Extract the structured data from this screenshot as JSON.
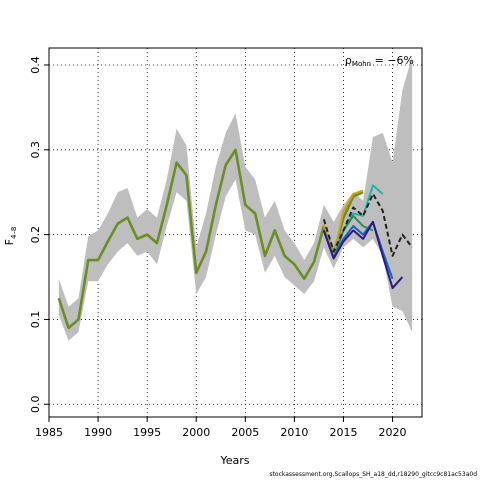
{
  "chart_data": {
    "type": "line",
    "xlabel": "Years",
    "ylabel_main": "F",
    "ylabel_sub": "4–8",
    "rho_symbol": "ρ",
    "rho_sub": "Mohn",
    "rho_value": " = −6%",
    "xlim": [
      1985,
      2023
    ],
    "ylim": [
      -0.015,
      0.42
    ],
    "x_ticks": [
      1985,
      1990,
      1995,
      2000,
      2005,
      2010,
      2015,
      2020
    ],
    "x_tick_labels": [
      "1985",
      "1990",
      "1995",
      "2000",
      "2005",
      "2010",
      "2015",
      "2020"
    ],
    "y_ticks": [
      0.0,
      0.1,
      0.2,
      0.3,
      0.4
    ],
    "y_tick_labels": [
      "0.0",
      "0.1",
      "0.2",
      "0.3",
      "0.4"
    ],
    "grid": true,
    "band": {
      "x": [
        1986,
        1987,
        1988,
        1989,
        1990,
        1991,
        1992,
        1993,
        1994,
        1995,
        1996,
        1997,
        1998,
        1999,
        2000,
        2001,
        2002,
        2003,
        2004,
        2005,
        2006,
        2007,
        2008,
        2009,
        2010,
        2011,
        2012,
        2013,
        2014,
        2015,
        2016,
        2017,
        2018,
        2019,
        2020,
        2021,
        2022
      ],
      "upper": [
        0.148,
        0.115,
        0.125,
        0.198,
        0.205,
        0.225,
        0.25,
        0.255,
        0.22,
        0.23,
        0.22,
        0.265,
        0.325,
        0.305,
        0.185,
        0.225,
        0.28,
        0.32,
        0.343,
        0.28,
        0.265,
        0.22,
        0.24,
        0.205,
        0.19,
        0.17,
        0.19,
        0.235,
        0.215,
        0.235,
        0.25,
        0.24,
        0.315,
        0.32,
        0.285,
        0.37,
        0.41
      ],
      "lower": [
        0.105,
        0.075,
        0.085,
        0.145,
        0.145,
        0.165,
        0.18,
        0.19,
        0.175,
        0.18,
        0.165,
        0.21,
        0.25,
        0.24,
        0.13,
        0.15,
        0.2,
        0.245,
        0.265,
        0.205,
        0.2,
        0.155,
        0.175,
        0.15,
        0.14,
        0.13,
        0.145,
        0.185,
        0.16,
        0.185,
        0.195,
        0.185,
        0.195,
        0.175,
        0.115,
        0.11,
        0.085
      ]
    },
    "series": [
      {
        "color": "#6b8e23",
        "x": [
          1986,
          1987,
          1988,
          1989,
          1990,
          1991,
          1992,
          1993,
          1994,
          1995,
          1996,
          1997,
          1998,
          1999,
          2000,
          2001,
          2002,
          2003,
          2004,
          2005,
          2006,
          2007,
          2008,
          2009,
          2010,
          2011,
          2012,
          2013,
          2014,
          2015,
          2016,
          2017
        ],
        "values": [
          0.125,
          0.09,
          0.1,
          0.17,
          0.17,
          0.192,
          0.213,
          0.22,
          0.195,
          0.2,
          0.19,
          0.235,
          0.285,
          0.27,
          0.155,
          0.18,
          0.235,
          0.282,
          0.3,
          0.235,
          0.225,
          0.175,
          0.205,
          0.175,
          0.165,
          0.148,
          0.168,
          0.21,
          0.178,
          0.22,
          0.245,
          0.25
        ]
      },
      {
        "color": "#d4a017",
        "x": [
          2013,
          2014,
          2015,
          2016,
          2017
        ],
        "values": [
          0.212,
          0.175,
          0.228,
          0.248,
          0.252
        ]
      },
      {
        "color": "#20b2aa",
        "x": [
          2013,
          2014,
          2015,
          2016,
          2017,
          2018,
          2019
        ],
        "values": [
          0.205,
          0.172,
          0.205,
          0.225,
          0.222,
          0.258,
          0.248
        ]
      },
      {
        "color": "#2e8b57",
        "x": [
          2013,
          2014,
          2015,
          2016,
          2017,
          2018
        ],
        "values": [
          0.205,
          0.172,
          0.205,
          0.222,
          0.21,
          0.205
        ]
      },
      {
        "color": "#1565c0",
        "x": [
          2013,
          2014,
          2015,
          2016,
          2017,
          2018,
          2019,
          2020
        ],
        "values": [
          0.205,
          0.172,
          0.195,
          0.21,
          0.2,
          0.215,
          0.18,
          0.148
        ]
      },
      {
        "color": "#2e1a87",
        "x": [
          2013,
          2014,
          2015,
          2016,
          2017,
          2018,
          2019,
          2020,
          2021
        ],
        "values": [
          0.205,
          0.172,
          0.192,
          0.205,
          0.195,
          0.215,
          0.175,
          0.137,
          0.15
        ]
      },
      {
        "color": "#222222",
        "dashed": true,
        "x": [
          2013,
          2014,
          2015,
          2016,
          2017,
          2018,
          2019,
          2020,
          2021,
          2022
        ],
        "values": [
          0.218,
          0.18,
          0.205,
          0.232,
          0.222,
          0.248,
          0.228,
          0.175,
          0.2,
          0.185
        ]
      }
    ]
  },
  "footer_text": "stockassessment.org,Scallops_SH_a18_dd,r18290_gitcc9c81ac53a0d"
}
